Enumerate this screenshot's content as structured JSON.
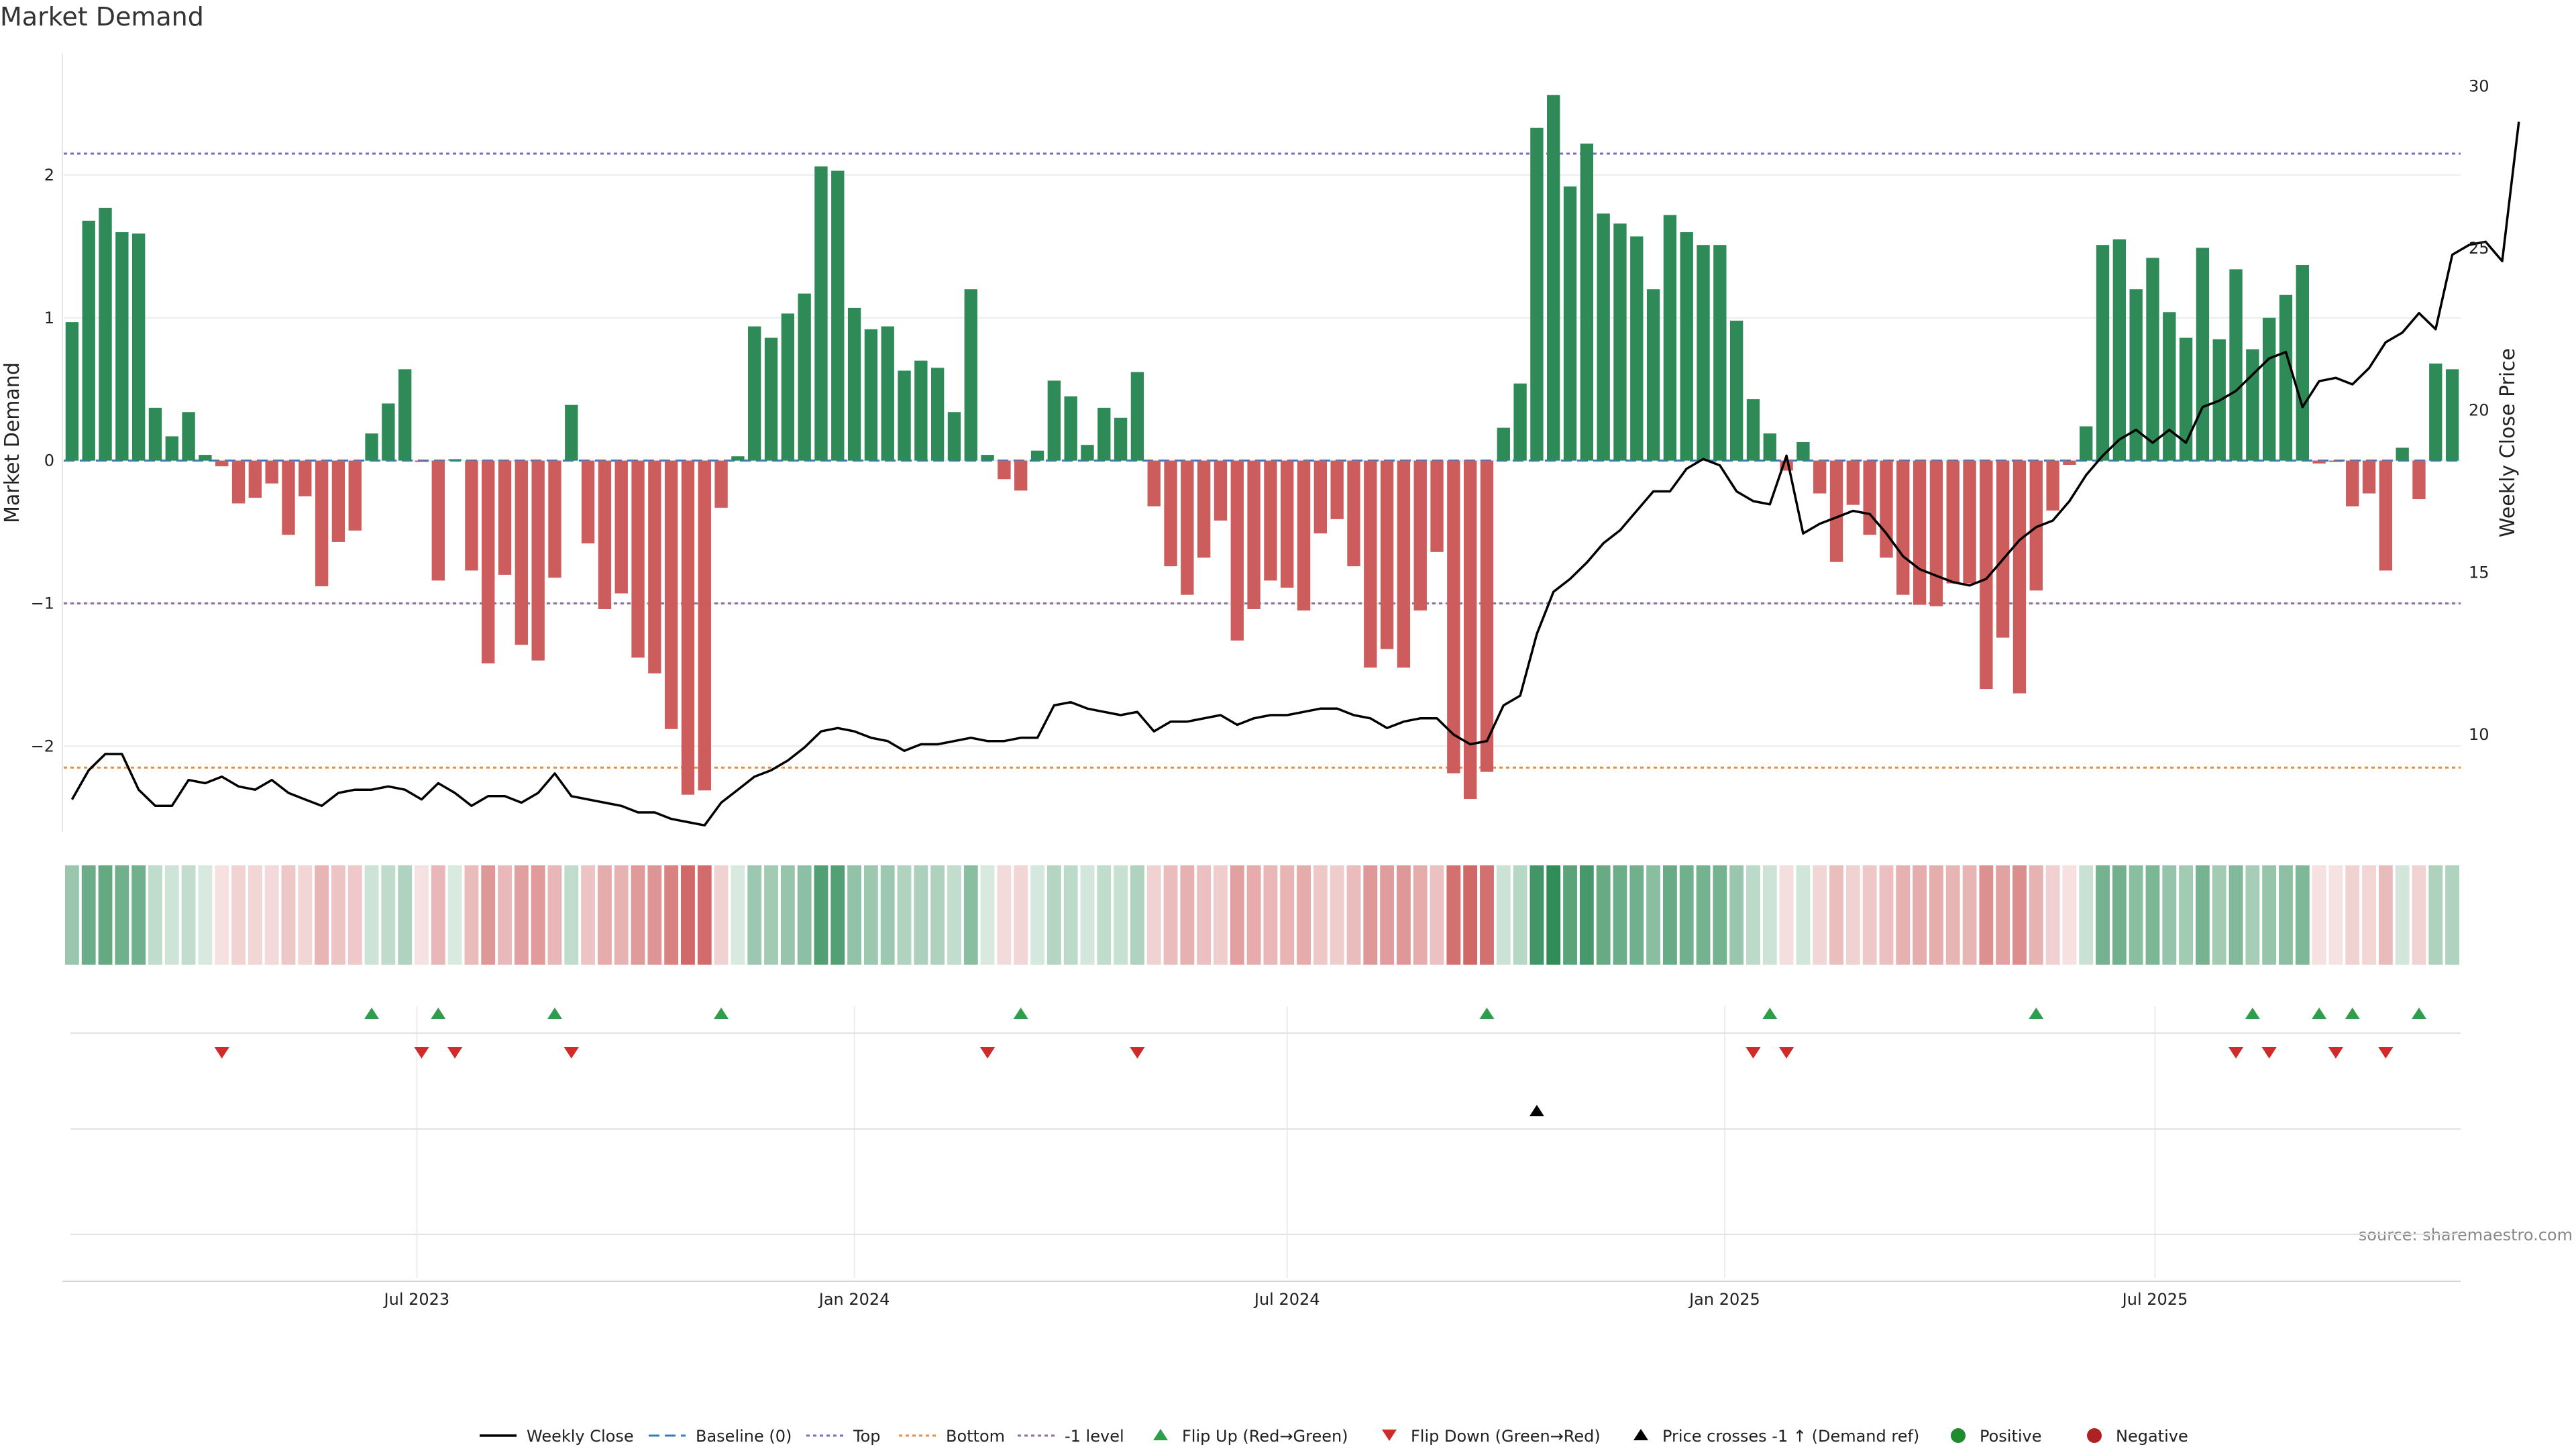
{
  "chart_data": {
    "type": "bar",
    "title": "Market Demand",
    "ylabel": "Market Demand",
    "y2label": "Weekly Close Price",
    "source": "source: sharemaestro.com",
    "start_date": "2023-02-06",
    "week_count": 144,
    "ylim": [
      -2.6,
      2.85
    ],
    "y_ticks": [
      -2,
      -1,
      0,
      1,
      2
    ],
    "y_tick_labels": [
      "−2",
      "−1",
      "0",
      "1",
      "2"
    ],
    "y2lim": [
      7.0,
      31.0
    ],
    "y2_ticks": [
      10,
      15,
      20,
      25,
      30
    ],
    "x_ticks": [
      {
        "date": "2023-07-01",
        "label": "Jul 2023"
      },
      {
        "date": "2024-01-01",
        "label": "Jan 2024"
      },
      {
        "date": "2024-07-01",
        "label": "Jul 2024"
      },
      {
        "date": "2025-01-01",
        "label": "Jan 2025"
      },
      {
        "date": "2025-07-01",
        "label": "Jul 2025"
      }
    ],
    "levels": {
      "top": 2.15,
      "bottom": -2.15,
      "minus_one": -1
    },
    "colors": {
      "positive": "#2e8b57",
      "negative": "#cd5c5c",
      "price": "#000000",
      "top": "#7b68c8",
      "bottom": "#e0913a",
      "minus_one": "#8a6f9e",
      "baseline": "#3a78c2",
      "flip_up": "#2e9e4a",
      "flip_down": "#d12a2a"
    },
    "demand": [
      0.97,
      1.68,
      1.77,
      1.6,
      1.59,
      0.37,
      0.17,
      0.34,
      0.04,
      -0.04,
      -0.3,
      -0.26,
      -0.16,
      -0.52,
      -0.25,
      -0.88,
      -0.57,
      -0.49,
      0.19,
      0.4,
      0.64,
      -0.01,
      -0.84,
      0.01,
      -0.77,
      -1.42,
      -0.8,
      -1.29,
      -1.4,
      -0.82,
      0.39,
      -0.58,
      -1.04,
      -0.93,
      -1.38,
      -1.49,
      -1.88,
      -2.34,
      -2.31,
      -0.33,
      0.03,
      0.94,
      0.86,
      1.03,
      1.17,
      2.06,
      2.03,
      1.07,
      0.92,
      0.94,
      0.63,
      0.7,
      0.65,
      0.34,
      1.2,
      0.04,
      -0.13,
      -0.21,
      0.07,
      0.56,
      0.45,
      0.11,
      0.37,
      0.3,
      0.62,
      -0.32,
      -0.74,
      -0.94,
      -0.68,
      -0.42,
      -1.26,
      -1.04,
      -0.84,
      -0.89,
      -1.05,
      -0.51,
      -0.41,
      -0.74,
      -1.45,
      -1.32,
      -1.45,
      -1.05,
      -0.64,
      -2.19,
      -2.37,
      -2.18,
      0.23,
      0.54,
      2.33,
      2.56,
      1.92,
      2.22,
      1.73,
      1.66,
      1.57,
      1.2,
      1.72,
      1.6,
      1.51,
      1.51,
      0.98,
      0.43,
      0.19,
      -0.07,
      0.13,
      -0.23,
      -0.71,
      -0.31,
      -0.52,
      -0.68,
      -0.94,
      -1.01,
      -1.02,
      -0.86,
      -0.86,
      -1.6,
      -1.24,
      -1.63,
      -0.91,
      -0.35,
      -0.03,
      0.24,
      1.51,
      1.55,
      1.2,
      1.42,
      1.04,
      0.86,
      1.49,
      0.85,
      1.34,
      0.78,
      1.0,
      1.16,
      1.37,
      -0.02,
      -0.01,
      -0.32,
      -0.23,
      -0.77,
      0.09,
      -0.27,
      0.68,
      0.64
    ],
    "price": [
      8.0,
      8.9,
      9.4,
      9.4,
      8.3,
      7.8,
      7.8,
      8.6,
      8.5,
      8.7,
      8.4,
      8.3,
      8.6,
      8.2,
      8.0,
      7.8,
      8.2,
      8.3,
      8.3,
      8.4,
      8.3,
      8.0,
      8.5,
      8.2,
      7.8,
      8.1,
      8.1,
      7.9,
      8.2,
      8.8,
      8.1,
      8.0,
      7.9,
      7.8,
      7.6,
      7.6,
      7.4,
      7.3,
      7.2,
      7.9,
      8.3,
      8.7,
      8.9,
      9.2,
      9.6,
      10.1,
      10.2,
      10.1,
      9.9,
      9.8,
      9.5,
      9.7,
      9.7,
      9.8,
      9.9,
      9.8,
      9.8,
      9.9,
      9.9,
      10.9,
      11.0,
      10.8,
      10.7,
      10.6,
      10.7,
      10.1,
      10.4,
      10.4,
      10.5,
      10.6,
      10.3,
      10.5,
      10.6,
      10.6,
      10.7,
      10.8,
      10.8,
      10.6,
      10.5,
      10.2,
      10.4,
      10.5,
      10.5,
      10.0,
      9.7,
      9.8,
      10.9,
      11.2,
      13.1,
      14.4,
      14.8,
      15.3,
      15.9,
      16.3,
      16.9,
      17.5,
      17.5,
      18.2,
      18.5,
      18.3,
      17.5,
      17.2,
      17.1,
      18.6,
      16.2,
      16.5,
      16.7,
      16.9,
      16.8,
      16.2,
      15.5,
      15.1,
      14.9,
      14.7,
      14.6,
      14.8,
      15.4,
      16.0,
      16.4,
      16.6,
      17.2,
      18.0,
      18.6,
      19.1,
      19.4,
      19.0,
      19.4,
      19.0,
      20.1,
      20.3,
      20.6,
      21.1,
      21.6,
      21.8,
      20.1,
      20.9,
      21.0,
      20.8,
      21.3,
      22.1,
      22.4,
      23.0,
      22.5,
      24.8,
      25.1,
      25.2,
      24.6,
      28.9
    ],
    "flip_up_weeks": [
      18,
      22,
      29,
      39,
      57,
      85,
      102,
      118,
      131,
      135,
      137,
      141
    ],
    "flip_down_weeks": [
      9,
      21,
      23,
      30,
      55,
      64,
      101,
      103,
      130,
      132,
      136,
      139
    ],
    "price_cross_weeks": [
      88
    ],
    "legend": [
      {
        "key": "line",
        "label": "Weekly Close"
      },
      {
        "key": "baseline",
        "label": "Baseline (0)"
      },
      {
        "key": "top",
        "label": "Top"
      },
      {
        "key": "bottom",
        "label": "Bottom"
      },
      {
        "key": "minus_one",
        "label": "-1 level"
      },
      {
        "key": "flip_up",
        "label": "Flip Up (Red→Green)"
      },
      {
        "key": "flip_down",
        "label": "Flip Down (Green→Red)"
      },
      {
        "key": "price_cross",
        "label": "Price crosses -1 ↑ (Demand ref)"
      },
      {
        "key": "positive",
        "label": "Positive"
      },
      {
        "key": "negative",
        "label": "Negative"
      }
    ]
  }
}
